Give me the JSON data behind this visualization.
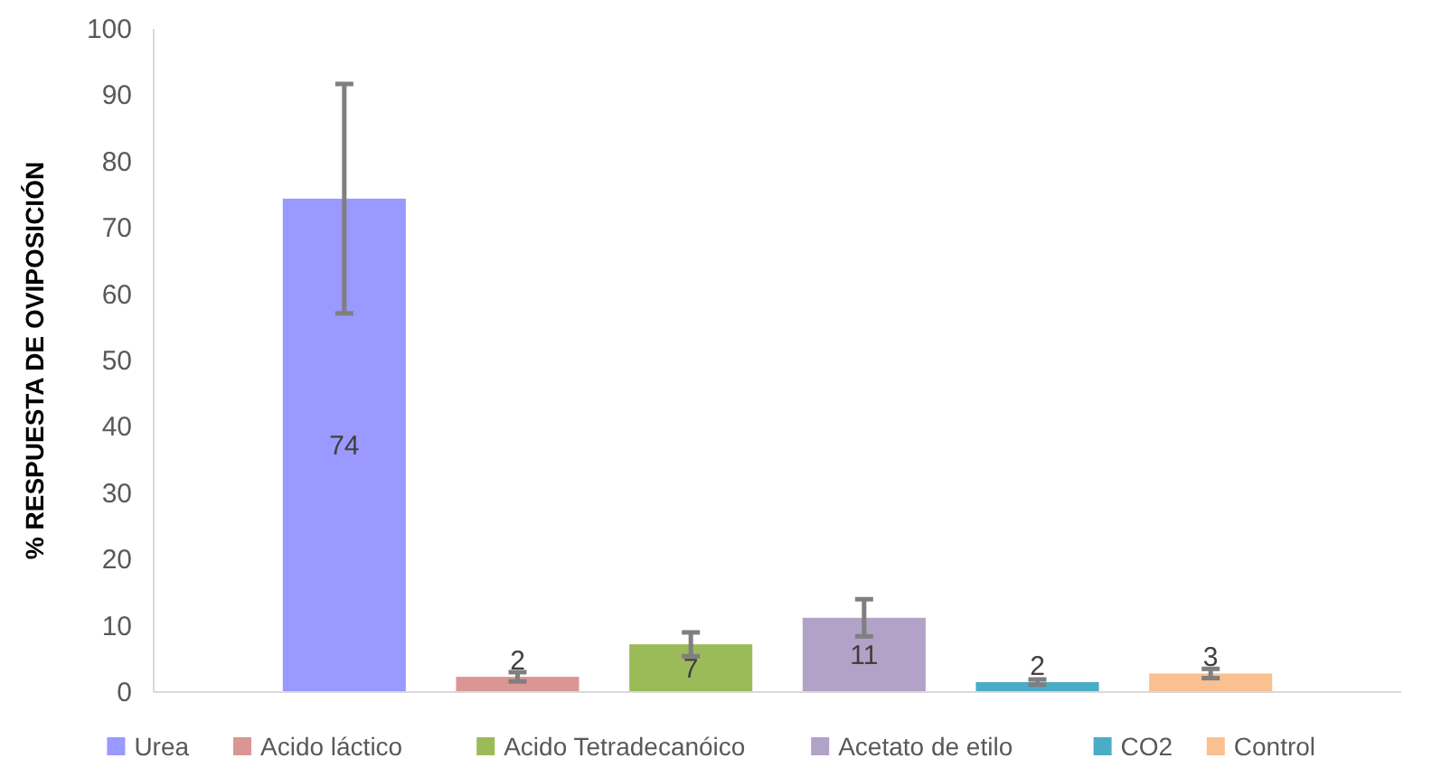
{
  "chart_data": {
    "type": "bar",
    "ylabel": "% RESPUESTA DE OVIPOSICIÓN",
    "categories": [
      null
    ],
    "series": [
      {
        "name": "Urea",
        "color": "#9999ff",
        "values": [
          74.4
        ],
        "errors": [
          17.3
        ],
        "value_labels": [
          "74"
        ]
      },
      {
        "name": "Acido láctico",
        "color": "#da9694",
        "values": [
          2.3
        ],
        "errors": [
          0.7
        ],
        "value_labels": [
          "2"
        ]
      },
      {
        "name": "Acido Tetradecanóico",
        "color": "#9bbb59",
        "values": [
          7.2
        ],
        "errors": [
          1.8
        ],
        "value_labels": [
          "7"
        ]
      },
      {
        "name": "Acetato de etilo",
        "color": "#b3a2c7",
        "values": [
          11.2
        ],
        "errors": [
          2.8
        ],
        "value_labels": [
          "11"
        ]
      },
      {
        "name": "CO2",
        "color": "#4bacc6",
        "values": [
          1.5
        ],
        "errors": [
          0.4
        ],
        "value_labels": [
          "2"
        ]
      },
      {
        "name": "Control",
        "color": "#fac090",
        "values": [
          2.8
        ],
        "errors": [
          0.7
        ],
        "value_labels": [
          "3"
        ]
      }
    ],
    "ylim": [
      0,
      100
    ],
    "yticks": [
      0,
      10,
      20,
      30,
      40,
      50,
      60,
      70,
      80,
      90,
      100
    ],
    "grid": false,
    "legend": "bottom"
  }
}
